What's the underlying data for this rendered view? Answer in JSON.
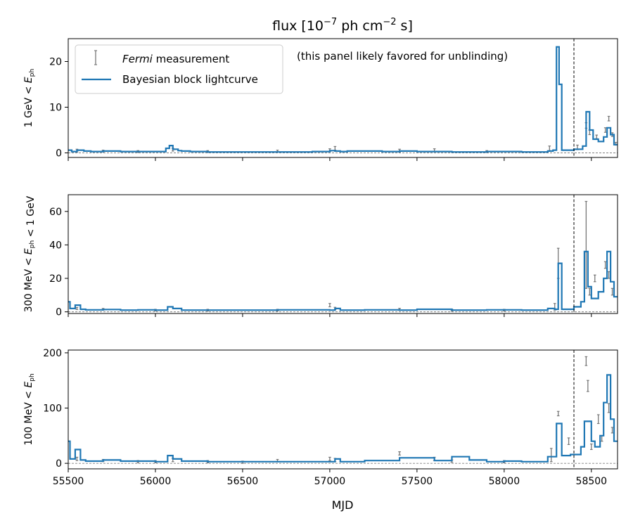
{
  "chart_data": {
    "type": "line",
    "title": "flux [10⁻⁷ ph cm⁻² s]",
    "xlabel": "MJD",
    "xlim": [
      55500,
      58650
    ],
    "x_ticks": [
      55500,
      56000,
      56500,
      57000,
      57500,
      58000,
      58500
    ],
    "colors": {
      "measurement": "#777777",
      "block": "#1f77b4"
    },
    "legend": {
      "placement": "top-left",
      "entries": [
        {
          "italic": "Fermi",
          "rest": " measurement"
        },
        {
          "text": "Bayesian block lightcurve"
        }
      ]
    },
    "annotation": "(this panel likely favored for unblinding)",
    "vline_x": 58400,
    "panels": [
      {
        "ylabel": "1 GeV < E_ph",
        "ylim": [
          -1,
          25
        ],
        "yticks": [
          0,
          10,
          20
        ],
        "series": [
          {
            "type": "step",
            "x": [
              55490,
              55520,
              55550,
              55590,
              55630,
              55700,
              55800,
              55900,
              56000,
              56060,
              56080,
              56100,
              56130,
              56150,
              56200,
              56300,
              56500,
              56700,
              56900,
              57000,
              57030,
              57060,
              57100,
              57300,
              57400,
              57500,
              57700,
              57900,
              58100,
              58250,
              58280,
              58300,
              58315,
              58330,
              58400,
              58450,
              58470,
              58490,
              58510,
              58540,
              58570,
              58590,
              58610,
              58630,
              58660
            ],
            "y": [
              0.6,
              0.3,
              0.6,
              0.4,
              0.3,
              0.4,
              0.3,
              0.3,
              0.3,
              1.0,
              1.6,
              0.8,
              0.5,
              0.4,
              0.3,
              0.2,
              0.2,
              0.2,
              0.3,
              0.5,
              0.4,
              0.3,
              0.4,
              0.3,
              0.4,
              0.3,
              0.2,
              0.3,
              0.2,
              0.4,
              0.6,
              23.2,
              15.0,
              0.6,
              0.8,
              1.5,
              9.0,
              5.0,
              3.0,
              2.5,
              3.5,
              5.5,
              4.0,
              1.8,
              1.8
            ]
          },
          {
            "type": "errorbar",
            "x": [
              55550,
              55700,
              55900,
              56100,
              56300,
              56700,
              57000,
              57030,
              57400,
              57600,
              57900,
              58260,
              58420,
              58470,
              58490,
              58530,
              58580,
              58600,
              58620,
              58640
            ],
            "y": [
              0.5,
              0.4,
              0.3,
              0.7,
              0.3,
              0.4,
              0.6,
              1.0,
              0.5,
              0.6,
              0.3,
              1.0,
              1.2,
              6.0,
              4.5,
              3.5,
              5.0,
              7.5,
              4.0,
              2.0
            ],
            "err": [
              0.3,
              0.2,
              0.2,
              0.3,
              0.2,
              0.2,
              0.3,
              0.4,
              0.3,
              0.3,
              0.2,
              0.5,
              0.5,
              0.6,
              0.5,
              0.4,
              0.5,
              0.5,
              0.4,
              0.3
            ]
          }
        ]
      },
      {
        "ylabel": "300 MeV < E_ph < 1 GeV",
        "ylim": [
          -1,
          70
        ],
        "yticks": [
          0,
          20,
          40,
          60
        ],
        "series": [
          {
            "type": "step",
            "x": [
              55490,
              55510,
              55540,
              55570,
              55600,
              55700,
              55800,
              55900,
              56000,
              56070,
              56100,
              56150,
              56300,
              56500,
              56700,
              57000,
              57030,
              57060,
              57200,
              57400,
              57500,
              57700,
              57900,
              58100,
              58250,
              58290,
              58310,
              58330,
              58400,
              58440,
              58460,
              58480,
              58500,
              58540,
              58570,
              58590,
              58610,
              58630,
              58660
            ],
            "y": [
              6.0,
              2.0,
              4.0,
              1.5,
              1.2,
              1.4,
              1.0,
              1.2,
              1.0,
              3.0,
              2.0,
              1.0,
              1.0,
              1.0,
              1.2,
              1.0,
              2.0,
              1.0,
              1.2,
              1.0,
              1.5,
              1.0,
              1.2,
              1.0,
              2.0,
              1.5,
              29.0,
              1.5,
              3.0,
              6.0,
              36.0,
              15.0,
              8.0,
              12.0,
              20.0,
              36.0,
              18.0,
              9.0,
              9.0
            ]
          },
          {
            "type": "errorbar",
            "x": [
              55550,
              55700,
              56000,
              56300,
              56700,
              57000,
              57030,
              57400,
              57700,
              58000,
              58290,
              58310,
              58470,
              58490,
              58520,
              58580,
              58600,
              58620
            ],
            "y": [
              2.0,
              1.5,
              1.0,
              1.0,
              1.0,
              4.0,
              2.0,
              1.5,
              1.0,
              1.0,
              3.0,
              29.0,
              40.0,
              12.0,
              20.0,
              28.0,
              22.0,
              12.0
            ],
            "err": [
              0.6,
              0.5,
              0.5,
              0.5,
              0.5,
              1.0,
              0.7,
              0.6,
              0.5,
              0.5,
              2.0,
              9.0,
              26.0,
              2.0,
              2.0,
              2.0,
              2.0,
              2.0
            ]
          }
        ]
      },
      {
        "ylabel": "100 MeV < E_ph",
        "ylim": [
          -10,
          205
        ],
        "yticks": [
          0,
          100,
          200
        ],
        "series": [
          {
            "type": "step",
            "x": [
              55490,
              55510,
              55540,
              55570,
              55600,
              55700,
              55800,
              55900,
              56000,
              56070,
              56100,
              56150,
              56300,
              56500,
              56700,
              57000,
              57030,
              57060,
              57200,
              57400,
              57600,
              57700,
              57800,
              57900,
              58000,
              58100,
              58250,
              58300,
              58330,
              58380,
              58440,
              58460,
              58500,
              58520,
              58550,
              58570,
              58590,
              58610,
              58630,
              58660
            ],
            "y": [
              40.0,
              8.0,
              25.0,
              6.0,
              4.0,
              6.0,
              4.0,
              4.0,
              3.0,
              14.0,
              8.0,
              4.0,
              3.0,
              3.0,
              3.0,
              3.0,
              8.0,
              3.0,
              5.0,
              10.0,
              5.0,
              12.0,
              6.0,
              3.0,
              4.0,
              3.0,
              12.0,
              72.0,
              14.0,
              16.0,
              30.0,
              76.0,
              40.0,
              30.0,
              50.0,
              110.0,
              160.0,
              80.0,
              40.0,
              40.0
            ]
          },
          {
            "type": "errorbar",
            "x": [
              55550,
              55700,
              55900,
              56000,
              56100,
              56300,
              56500,
              56700,
              57000,
              57030,
              57400,
              57600,
              57700,
              58000,
              58270,
              58310,
              58370,
              58470,
              58480,
              58500,
              58540,
              58560,
              58600,
              58620
            ],
            "y": [
              8.0,
              5.0,
              3.0,
              3.0,
              6.0,
              3.0,
              2.0,
              5.0,
              8.0,
              6.0,
              18.0,
              8.0,
              4.0,
              3.0,
              15.0,
              90.0,
              40.0,
              185.0,
              140.0,
              30.0,
              80.0,
              45.0,
              100.0,
              60.0
            ],
            "err": [
              3.0,
              2.0,
              2.0,
              2.0,
              3.0,
              2.0,
              2.0,
              2.0,
              3.0,
              3.0,
              3.0,
              3.0,
              2.0,
              2.0,
              12.0,
              4.0,
              6.0,
              8.0,
              10.0,
              5.0,
              8.0,
              5.0,
              8.0,
              5.0
            ]
          }
        ]
      }
    ]
  }
}
